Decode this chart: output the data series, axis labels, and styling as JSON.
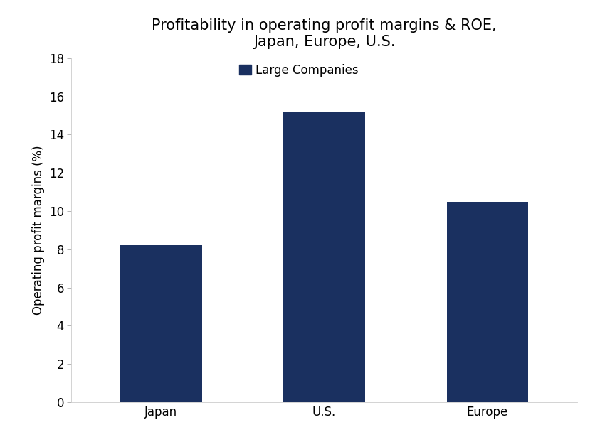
{
  "title": "Profitability in operating profit margins & ROE,\nJapan, Europe, U.S.",
  "ylabel": "Operating profit margins (%)",
  "categories": [
    "Japan",
    "U.S.",
    "Europe"
  ],
  "values": [
    8.2,
    15.2,
    10.5
  ],
  "bar_color": "#1a3060",
  "ylim": [
    0,
    18
  ],
  "yticks": [
    0,
    2,
    4,
    6,
    8,
    10,
    12,
    14,
    16,
    18
  ],
  "legend_label": "Large Companies",
  "legend_marker_color": "#1a3060",
  "background_color": "#ffffff",
  "title_fontsize": 15,
  "axis_fontsize": 12,
  "tick_fontsize": 12,
  "bar_width": 0.5
}
